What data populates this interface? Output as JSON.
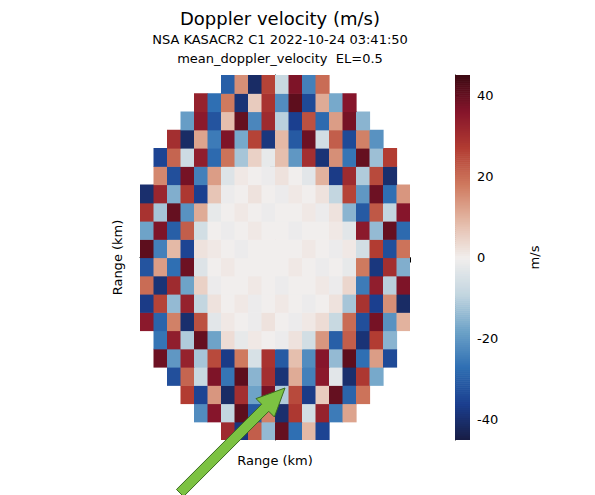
{
  "chart_data": {
    "type": "heatmap",
    "title": "Doppler velocity (m/s)",
    "subtitle": [
      "NSA KASACR2 C1 2022-10-24 03:41:50",
      "mean_doppler_velocity  EL=0.5"
    ],
    "xlabel": "Range (km)",
    "ylabel": "Range (km)",
    "tick_labels": false,
    "xlim": [
      -20,
      20
    ],
    "ylim": [
      -20,
      20
    ],
    "xticks": [
      -20,
      -10,
      0,
      10,
      20
    ],
    "yticks": [
      -15,
      -10,
      -5,
      0,
      5,
      10,
      15
    ],
    "x": [
      -19,
      -17,
      -15,
      -13,
      -11,
      -9,
      -7,
      -5,
      -3,
      -1,
      1,
      3,
      5,
      7,
      9,
      11,
      13,
      15,
      17,
      19
    ],
    "y": [
      -19,
      -17,
      -15,
      -13,
      -11,
      -9,
      -7,
      -5,
      -3,
      -1,
      1,
      3,
      5,
      7,
      9,
      11,
      13,
      15,
      17,
      19
    ],
    "values": [
      [
        null,
        null,
        null,
        null,
        null,
        null,
        31,
        -38,
        22,
        -14,
        40,
        -27,
        9,
        -35,
        null,
        null,
        null,
        null,
        null,
        null
      ],
      [
        null,
        null,
        null,
        null,
        -22,
        36,
        -9,
        41,
        -31,
        17,
        -40,
        28,
        -6,
        33,
        -25,
        12,
        null,
        null,
        null,
        null
      ],
      [
        null,
        null,
        null,
        27,
        -35,
        14,
        -41,
        30,
        -18,
        38,
        -11,
        25,
        -37,
        6,
        40,
        -29,
        19,
        null,
        null,
        null
      ],
      [
        null,
        null,
        -33,
        21,
        -8,
        37,
        -26,
        41,
        -15,
        30,
        -39,
        11,
        -24,
        35,
        -3,
        -40,
        28,
        -17,
        null,
        null
      ],
      [
        null,
        39,
        -20,
        33,
        -12,
        25,
        -37,
        18,
        -5,
        29,
        -31,
        8,
        -22,
        36,
        -14,
        41,
        -27,
        13,
        -34,
        null
      ],
      [
        null,
        -26,
        34,
        -11,
        40,
        -18,
        3,
        -2,
        1,
        0,
        -1,
        2,
        -6,
        14,
        -30,
        22,
        -39,
        27,
        -15,
        null
      ],
      [
        35,
        -29,
        17,
        -40,
        24,
        -3,
        1,
        0,
        -1,
        2,
        0,
        -1,
        1,
        3,
        -8,
        20,
        -33,
        38,
        -21,
        10
      ],
      [
        -37,
        26,
        -14,
        33,
        -9,
        2,
        0,
        1,
        -1,
        0,
        1,
        0,
        -1,
        0,
        2,
        -12,
        29,
        -36,
        15,
        -41
      ],
      [
        20,
        -39,
        31,
        -18,
        5,
        -1,
        0,
        0,
        1,
        0,
        -1,
        0,
        0,
        1,
        -1,
        4,
        -25,
        34,
        -10,
        37
      ],
      [
        -32,
        13,
        -27,
        39,
        -4,
        0,
        1,
        0,
        0,
        0,
        0,
        1,
        0,
        -1,
        0,
        -2,
        18,
        -38,
        30,
        -16
      ],
      [
        41,
        -24,
        9,
        -35,
        2,
        1,
        0,
        -1,
        0,
        0,
        0,
        0,
        1,
        0,
        -1,
        1,
        -6,
        27,
        -33,
        19
      ],
      [
        -18,
        37,
        -30,
        22,
        -6,
        0,
        -1,
        0,
        1,
        0,
        0,
        -1,
        0,
        0,
        1,
        -3,
        35,
        -14,
        40,
        -28
      ],
      [
        29,
        -12,
        40,
        -21,
        11,
        -2,
        0,
        1,
        0,
        -1,
        0,
        0,
        1,
        -1,
        2,
        -15,
        -31,
        23,
        -9,
        36
      ],
      [
        -40,
        32,
        -16,
        28,
        -36,
        7,
        -1,
        0,
        2,
        0,
        -1,
        1,
        0,
        2,
        -9,
        26,
        -20,
        39,
        -27,
        14
      ],
      [
        null,
        16,
        -33,
        38,
        -24,
        13,
        -4,
        1,
        0,
        -1,
        2,
        0,
        -3,
        10,
        -37,
        31,
        -11,
        25,
        -40,
        null
      ],
      [
        null,
        -35,
        21,
        -7,
        34,
        -28,
        19,
        -12,
        5,
        -2,
        8,
        -20,
        30,
        -39,
        15,
        -26,
        40,
        -13,
        27,
        null
      ],
      [
        null,
        null,
        30,
        -41,
        12,
        -25,
        37,
        -17,
        26,
        -38,
        9,
        -31,
        39,
        -6,
        22,
        -34,
        17,
        -21,
        null,
        null
      ],
      [
        null,
        null,
        null,
        -19,
        35,
        -32,
        8,
        40,
        -23,
        31,
        -10,
        -36,
        24,
        -28,
        13,
        38,
        -15,
        null,
        null,
        null
      ],
      [
        null,
        null,
        null,
        null,
        33,
        -27,
        18,
        -39,
        6,
        29,
        -22,
        41,
        -34,
        11,
        -17,
        36,
        null,
        null,
        null,
        null
      ],
      [
        null,
        null,
        null,
        null,
        null,
        null,
        -30,
        15,
        -41,
        26,
        -8,
        37,
        -24,
        20,
        null,
        null,
        null,
        null,
        null,
        null
      ]
    ],
    "colorbar": {
      "label": "m/s",
      "range": [
        -45,
        45
      ],
      "ticks": [
        -40,
        -20,
        0,
        20,
        40
      ]
    }
  }
}
